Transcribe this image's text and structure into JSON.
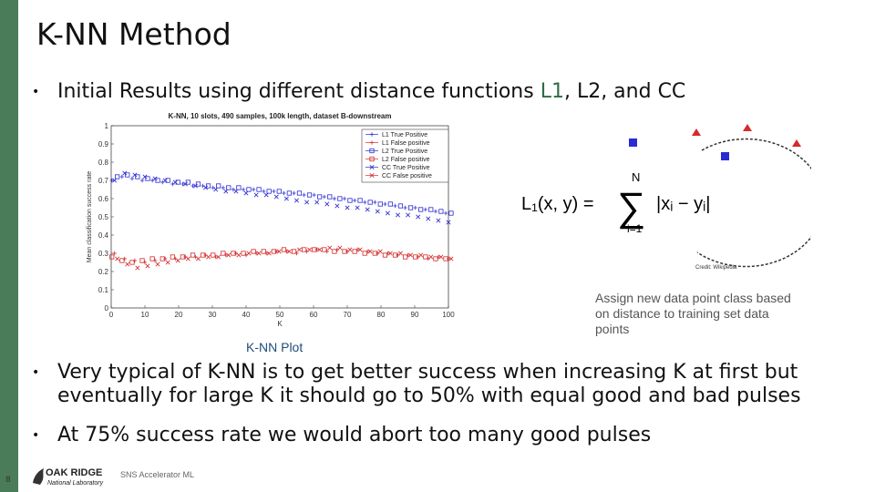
{
  "slide": {
    "title": "K-NN Method",
    "bullet1_prefix": "Initial Results using different distance functions ",
    "bullet1_l1": "L1",
    "bullet1_suffix": ", L2, and CC",
    "bullet2_line1": "Very typical of K-NN is to get better success when increasing K at first but",
    "bullet2_line2": "eventually for large K it should go to 50% with equal good and bad pulses",
    "bullet3": "At 75% success rate we would abort too many good pulses",
    "plot_caption": "K-NN Plot",
    "note": "Assign new data point class based on distance to training set data points",
    "credit": "Credit: Wikipedia",
    "formula_left": "L₁(x, y) =",
    "formula_sum_top": "N",
    "formula_sum_bottom": "i=1",
    "formula_term": "|xᵢ − yᵢ|",
    "page_number": "8",
    "footer": "SNS Accelerator ML",
    "logo_top": "OAK RIDGE",
    "logo_bottom": "National Laboratory"
  },
  "colors": {
    "sidebar": "#4a7c59",
    "accent": "#2e6b44",
    "blue_series": "#2b2bd4",
    "red_series": "#d42b2b"
  },
  "chart_data": {
    "type": "scatter",
    "title": "K-NN, 10 slots, 490 samples, 100k length, dataset B-downstream",
    "xlabel": "K",
    "ylabel": "Mean classification success rate",
    "xlim": [
      0,
      100
    ],
    "ylim": [
      0,
      1
    ],
    "xticks": [
      0,
      10,
      20,
      30,
      40,
      50,
      60,
      70,
      80,
      90,
      100
    ],
    "yticks": [
      0,
      0.1,
      0.2,
      0.3,
      0.4,
      0.5,
      0.6,
      0.7,
      0.8,
      0.9,
      1
    ],
    "x": [
      1,
      4,
      7,
      10,
      13,
      16,
      19,
      22,
      25,
      28,
      31,
      34,
      37,
      40,
      43,
      46,
      49,
      52,
      55,
      58,
      61,
      64,
      67,
      70,
      73,
      76,
      79,
      82,
      85,
      88,
      91,
      94,
      97,
      100
    ],
    "legend": [
      "L1 True Positive",
      "L1 False positive",
      "L2 True Positive",
      "L2 False positive",
      "CC True Positive",
      "CC False positive"
    ],
    "series": [
      {
        "name": "L1 True Positive",
        "color": "blue",
        "marker": "+",
        "values": [
          0.7,
          0.72,
          0.71,
          0.7,
          0.7,
          0.69,
          0.68,
          0.68,
          0.67,
          0.67,
          0.66,
          0.66,
          0.65,
          0.65,
          0.65,
          0.64,
          0.64,
          0.63,
          0.63,
          0.62,
          0.62,
          0.61,
          0.6,
          0.6,
          0.59,
          0.58,
          0.58,
          0.57,
          0.56,
          0.55,
          0.55,
          0.54,
          0.53,
          0.52
        ]
      },
      {
        "name": "L1 False positive",
        "color": "red",
        "marker": "+",
        "values": [
          0.3,
          0.27,
          0.26,
          0.25,
          0.26,
          0.27,
          0.27,
          0.28,
          0.28,
          0.29,
          0.28,
          0.29,
          0.3,
          0.29,
          0.3,
          0.3,
          0.31,
          0.31,
          0.3,
          0.31,
          0.32,
          0.31,
          0.32,
          0.31,
          0.32,
          0.31,
          0.3,
          0.3,
          0.29,
          0.29,
          0.28,
          0.27,
          0.28,
          0.27
        ]
      },
      {
        "name": "L2 True Positive",
        "color": "blue",
        "marker": "square",
        "values": [
          0.72,
          0.73,
          0.72,
          0.71,
          0.7,
          0.7,
          0.69,
          0.69,
          0.68,
          0.67,
          0.67,
          0.66,
          0.66,
          0.65,
          0.65,
          0.64,
          0.64,
          0.63,
          0.63,
          0.62,
          0.61,
          0.61,
          0.6,
          0.59,
          0.59,
          0.58,
          0.57,
          0.57,
          0.56,
          0.55,
          0.54,
          0.54,
          0.53,
          0.52
        ]
      },
      {
        "name": "L2 False positive",
        "color": "red",
        "marker": "square",
        "values": [
          0.28,
          0.26,
          0.25,
          0.26,
          0.27,
          0.27,
          0.28,
          0.28,
          0.29,
          0.29,
          0.29,
          0.3,
          0.3,
          0.3,
          0.31,
          0.31,
          0.31,
          0.32,
          0.31,
          0.32,
          0.32,
          0.32,
          0.31,
          0.31,
          0.31,
          0.3,
          0.3,
          0.29,
          0.29,
          0.28,
          0.28,
          0.28,
          0.27,
          0.27
        ]
      },
      {
        "name": "CC True Positive",
        "color": "blue",
        "marker": "x",
        "values": [
          0.7,
          0.74,
          0.73,
          0.72,
          0.71,
          0.7,
          0.69,
          0.68,
          0.67,
          0.66,
          0.65,
          0.64,
          0.64,
          0.63,
          0.62,
          0.62,
          0.61,
          0.6,
          0.59,
          0.58,
          0.58,
          0.57,
          0.56,
          0.55,
          0.55,
          0.54,
          0.53,
          0.52,
          0.51,
          0.51,
          0.5,
          0.49,
          0.48,
          0.47
        ]
      },
      {
        "name": "CC False positive",
        "color": "red",
        "marker": "x",
        "values": [
          0.27,
          0.24,
          0.22,
          0.23,
          0.24,
          0.25,
          0.26,
          0.27,
          0.27,
          0.28,
          0.28,
          0.29,
          0.29,
          0.3,
          0.3,
          0.3,
          0.31,
          0.31,
          0.32,
          0.32,
          0.32,
          0.33,
          0.33,
          0.32,
          0.32,
          0.31,
          0.31,
          0.3,
          0.3,
          0.29,
          0.29,
          0.28,
          0.28,
          0.27
        ]
      }
    ]
  }
}
